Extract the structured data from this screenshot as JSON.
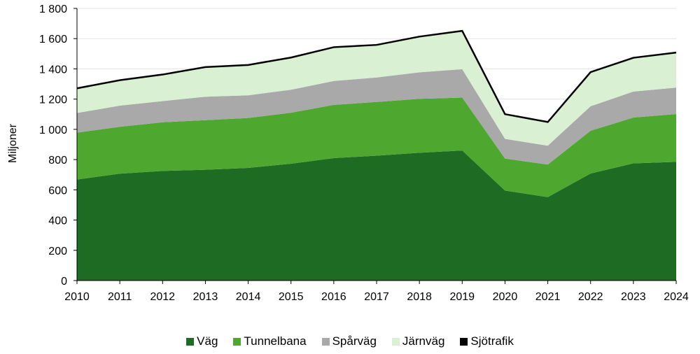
{
  "chart_data": {
    "type": "area",
    "stacked": true,
    "title": "",
    "xlabel": "",
    "ylabel": "Miljoner",
    "ylim": [
      0,
      1800
    ],
    "yticks": [
      "0",
      "200",
      "400",
      "600",
      "800",
      "1 000",
      "1 200",
      "1 400",
      "1 600",
      "1 800"
    ],
    "x": [
      "2010",
      "2011",
      "2012",
      "2013",
      "2014",
      "2015",
      "2016",
      "2017",
      "2018",
      "2019",
      "2020",
      "2021",
      "2022",
      "2023",
      "2024"
    ],
    "legend_position": "bottom",
    "series": [
      {
        "name": "Väg",
        "color": "#1e6b24",
        "values": [
          668,
          707,
          725,
          733,
          745,
          773,
          810,
          826,
          845,
          860,
          595,
          552,
          708,
          775,
          785
        ]
      },
      {
        "name": "Tunnelbana",
        "color": "#4ea72e",
        "values": [
          310,
          310,
          322,
          328,
          330,
          337,
          352,
          355,
          357,
          350,
          212,
          215,
          283,
          303,
          316
        ]
      },
      {
        "name": "Spårväg",
        "color": "#a9a9a9",
        "values": [
          130,
          140,
          140,
          155,
          150,
          152,
          158,
          162,
          175,
          188,
          130,
          125,
          162,
          172,
          175
        ]
      },
      {
        "name": "Järnväg",
        "color": "#d9f0d3",
        "values": [
          160,
          165,
          172,
          193,
          198,
          210,
          220,
          212,
          233,
          250,
          162,
          155,
          222,
          220,
          228
        ]
      },
      {
        "name": "Sjötrafik",
        "color": "#000000",
        "values": [
          7,
          6,
          7,
          6,
          6,
          6,
          7,
          7,
          7,
          7,
          3,
          3,
          7,
          7,
          8
        ]
      }
    ]
  }
}
